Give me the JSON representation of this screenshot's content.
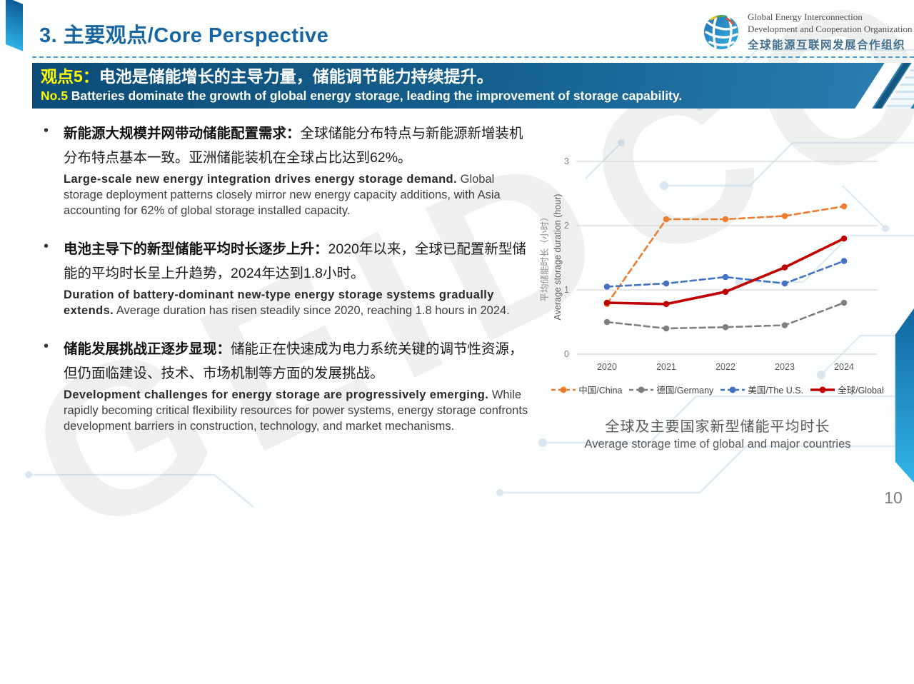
{
  "slide": {
    "title": "3. 主要观点/Core Perspective",
    "page_number": "10",
    "watermark": "GEIDCO",
    "accent_blue": "#1766a2",
    "banner_blue": "#0d4c78"
  },
  "logo": {
    "org_en_line1": "Global Energy Interconnection",
    "org_en_line2": "Development and Cooperation Organization",
    "org_cn": "全球能源互联网发展合作组织"
  },
  "banner": {
    "badge_cn": "观点5：",
    "headline_cn": "电池是储能增长的主导力量，储能调节能力持续提升。",
    "badge_en": "No.5 ",
    "headline_en": "Batteries dominate the growth of global energy storage, leading the improvement of storage capability."
  },
  "bullets": [
    {
      "cn_bold": "新能源大规模并网带动储能配置需求：",
      "cn_rest": "全球储能分布特点与新能源新增装机分布特点基本一致。亚洲储能装机在全球占比达到62%。",
      "en_bold": "Large-scale new energy integration drives energy storage demand.",
      "en_rest": " Global storage deployment patterns closely mirror new energy capacity additions, with Asia accounting for 62% of global storage installed capacity."
    },
    {
      "cn_bold": "电池主导下的新型储能平均时长逐步上升：",
      "cn_rest": "2020年以来，全球已配置新型储能的平均时长呈上升趋势，2024年达到1.8小时。",
      "en_bold": "Duration of battery-dominant new-type energy storage systems gradually extends.",
      "en_rest": " Average duration has risen steadily since 2020, reaching 1.8 hours in 2024."
    },
    {
      "cn_bold": "储能发展挑战正逐步显现：",
      "cn_rest": "储能正在快速成为电力系统关键的调节性资源，但仍面临建设、技术、市场机制等方面的发展挑战。",
      "en_bold": "Development challenges for energy storage are progressively emerging.",
      "en_rest": " While rapidly becoming critical flexibility resources for power systems, energy storage confronts development barriers in construction, technology, and market mechanisms."
    }
  ],
  "chart": {
    "caption_cn": "全球及主要国家新型储能平均时长",
    "caption_en": "Average storage time of global and major countries"
  },
  "chart_data": {
    "type": "line",
    "x": [
      2020,
      2021,
      2022,
      2023,
      2024
    ],
    "series": [
      {
        "name": "中国/China",
        "color": "#ED7D31",
        "dashed": true,
        "values": [
          0.78,
          2.1,
          2.1,
          2.15,
          2.3
        ]
      },
      {
        "name": "德国/Germany",
        "color": "#7F7F7F",
        "dashed": true,
        "values": [
          0.5,
          0.4,
          0.42,
          0.45,
          0.8
        ]
      },
      {
        "name": "美国/The U.S.",
        "color": "#4472C4",
        "dashed": true,
        "values": [
          1.05,
          1.1,
          1.2,
          1.1,
          1.45
        ]
      },
      {
        "name": "全球/Global",
        "color": "#C00000",
        "dashed": false,
        "values": [
          0.8,
          0.78,
          0.97,
          1.35,
          1.8
        ]
      }
    ],
    "ylabel_cn": "平均储能时长（小时）",
    "ylabel_en": "Average storage duration (hour)",
    "ylim": [
      0,
      3
    ],
    "yticks": [
      0,
      1,
      2,
      3
    ],
    "grid": true,
    "legend_position": "bottom"
  }
}
